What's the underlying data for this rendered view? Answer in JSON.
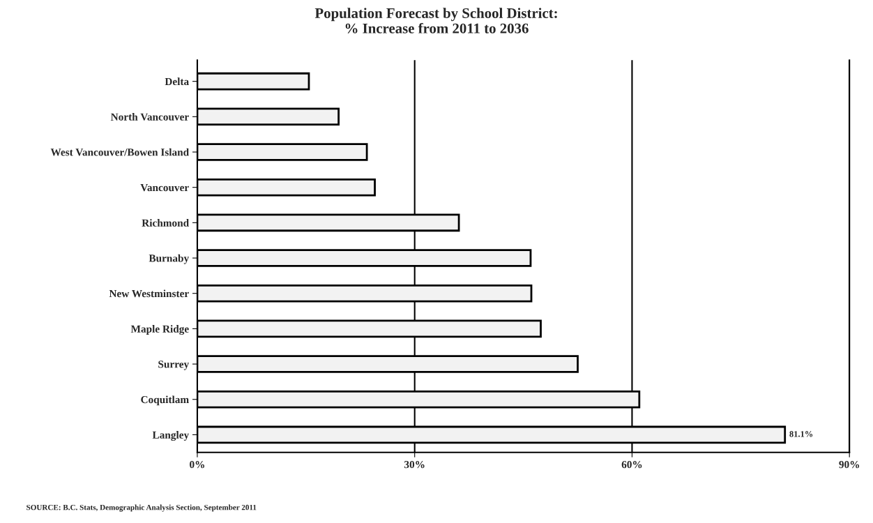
{
  "chart_data": {
    "type": "bar",
    "orientation": "horizontal",
    "title": "Population Forecast by School District:\n% Increase from 2011 to 2036",
    "categories": [
      "Delta",
      "North Vancouver",
      "West Vancouver/Bowen Island",
      "Vancouver",
      "Richmond",
      "Burnaby",
      "New Westminster",
      "Maple Ridge",
      "Surrey",
      "Coquitlam",
      "Langley"
    ],
    "values": [
      15.4,
      19.5,
      23.4,
      24.5,
      36.1,
      46.0,
      46.1,
      47.4,
      52.5,
      61.0,
      81.1
    ],
    "value_labels": [
      null,
      null,
      null,
      null,
      null,
      null,
      null,
      null,
      null,
      null,
      "81.1%"
    ],
    "color": "#f2f2f2",
    "xlim": [
      0,
      90
    ],
    "xticks": [
      {
        "value": 0,
        "label": "0%"
      },
      {
        "value": 30,
        "label": "30%"
      },
      {
        "value": 60,
        "label": "60%"
      },
      {
        "value": 90,
        "label": "90%"
      }
    ],
    "grid": "x",
    "annotations": [
      "SOURCE: B.C. Stats, Demographic Analysis Section, September 2011"
    ]
  }
}
